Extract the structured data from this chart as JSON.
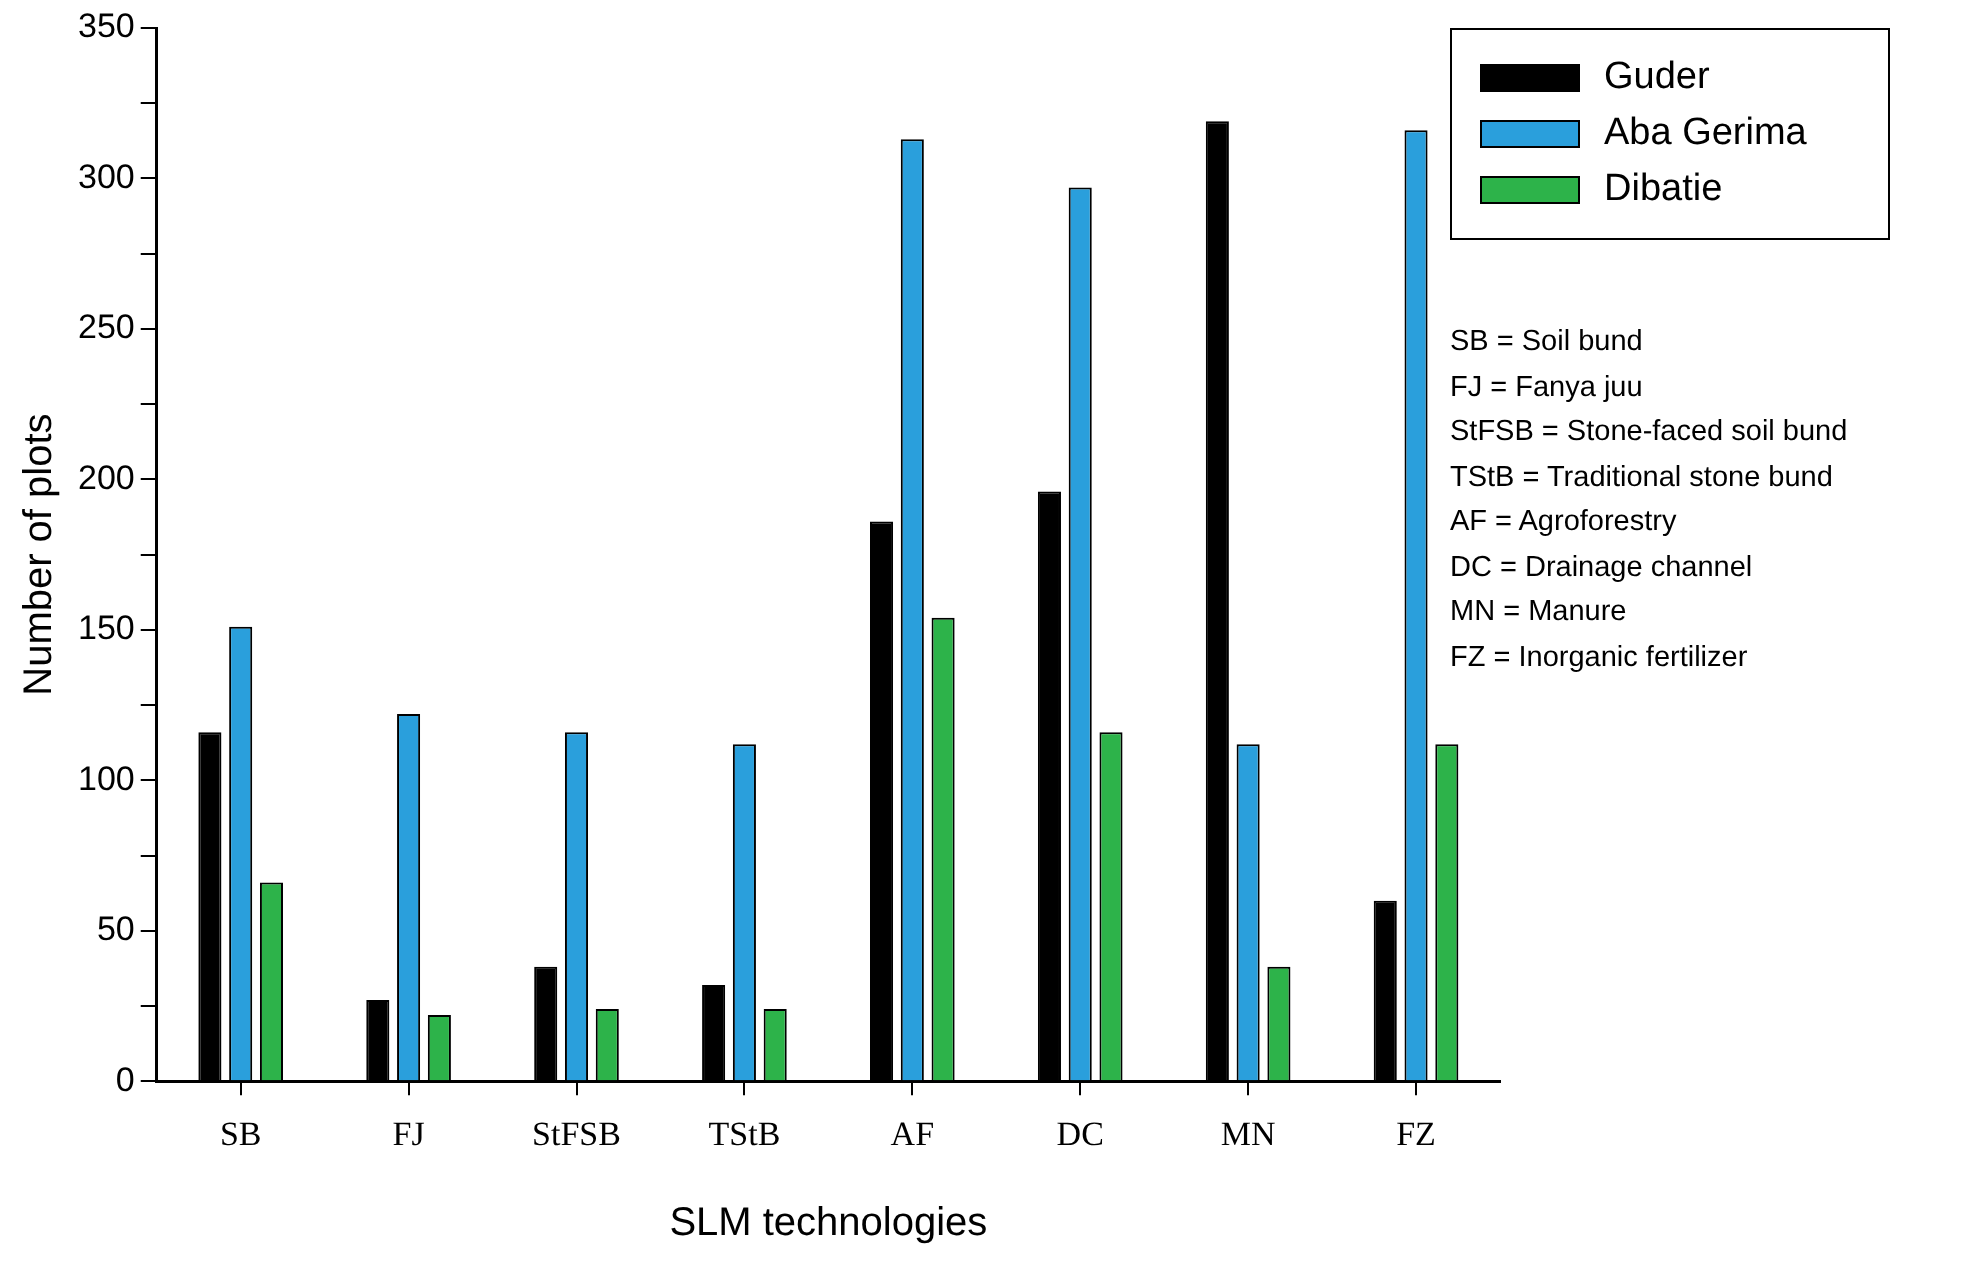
{
  "chart_data": {
    "type": "bar",
    "xlabel": "SLM technologies",
    "ylabel": "Number of plots",
    "categories": [
      "SB",
      "FJ",
      "StFSB",
      "TStB",
      "AF",
      "DC",
      "MN",
      "FZ"
    ],
    "series": [
      {
        "name": "Guder",
        "color": "#000000",
        "values": [
          116,
          27,
          38,
          32,
          186,
          196,
          319,
          60
        ]
      },
      {
        "name": "Aba Gerima",
        "color": "#2a9fdc",
        "values": [
          151,
          122,
          116,
          112,
          313,
          297,
          112,
          316
        ]
      },
      {
        "name": "Dibatie",
        "color": "#2db34a",
        "values": [
          66,
          22,
          24,
          24,
          154,
          116,
          38,
          112
        ]
      }
    ],
    "ylim": [
      0,
      350
    ],
    "yticks": [
      0,
      {
        "value": 25,
        "label": null
      },
      50,
      {
        "value": 75,
        "label": null
      },
      100,
      {
        "value": 125,
        "label": null
      },
      150,
      {
        "value": 175,
        "label": null
      },
      200,
      {
        "value": 225,
        "label": null
      },
      250,
      {
        "value": 275,
        "label": null
      },
      300,
      {
        "value": 325,
        "label": null
      },
      350
    ],
    "grid": false,
    "legend": "top right",
    "annotations": [
      "SB = Soil bund",
      "FJ = Fanya juu",
      "StFSB = Stone-faced soil bund",
      "TStB = Traditional stone bund",
      "AF = Agroforestry",
      "DC = Drainage channel",
      "MN = Manure",
      "FZ = Inorganic fertilizer"
    ]
  }
}
